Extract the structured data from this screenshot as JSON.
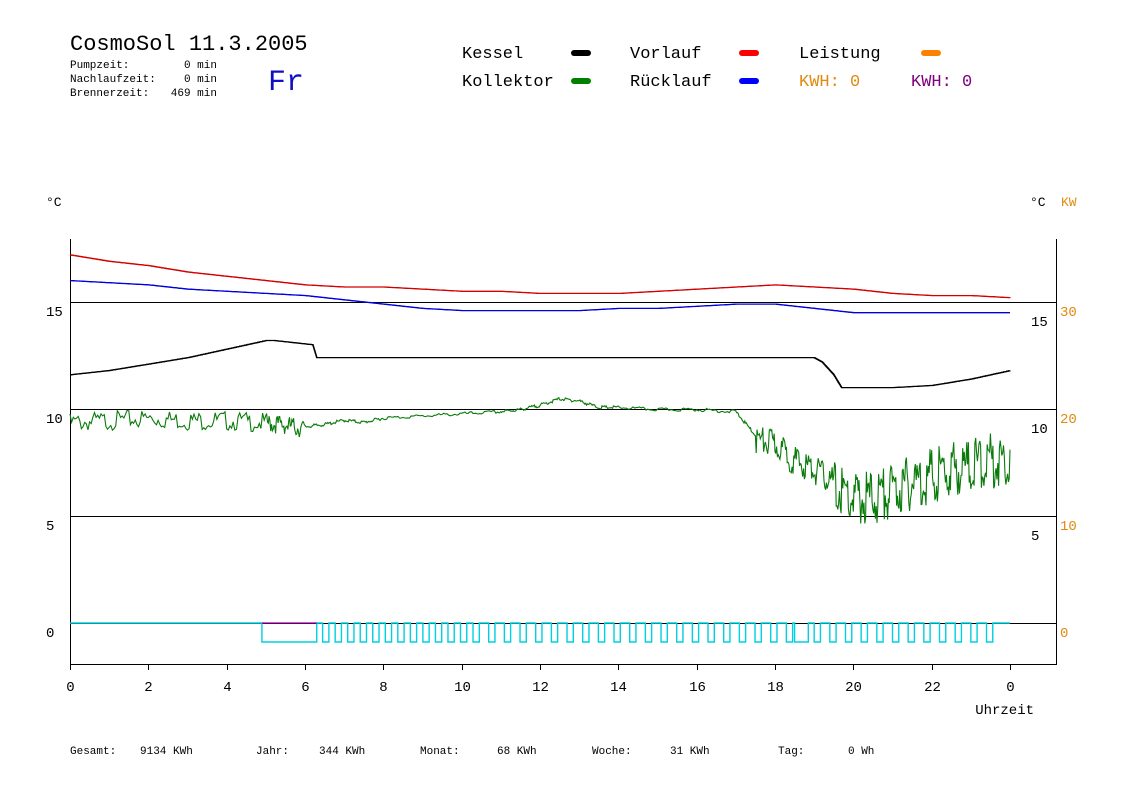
{
  "header": {
    "title": "CosmoSol 11.3.2005",
    "day": "Fr",
    "stats": [
      {
        "label": "Pumpzeit:",
        "value": "0 min"
      },
      {
        "label": "Nachlaufzeit:",
        "value": "0 min"
      },
      {
        "label": "Brennerzeit:",
        "value": "469 min"
      }
    ]
  },
  "legend": {
    "items": [
      {
        "label": "Kessel",
        "color": "#000000"
      },
      {
        "label": "Vorlauf",
        "color": "#ff0000"
      },
      {
        "label": "Leistung",
        "color": "#ff8000"
      },
      {
        "label": "Kollektor",
        "color": "#008000"
      },
      {
        "label": "Rücklauf",
        "color": "#0000ff"
      }
    ],
    "kwh_orange": "KWH: 0",
    "kwh_purple": "KWH: 0"
  },
  "footer": [
    {
      "label": "Gesamt:",
      "value": "9134 KWh"
    },
    {
      "label": "Jahr:",
      "value": "344 KWh"
    },
    {
      "label": "Monat:",
      "value": "68 KWh"
    },
    {
      "label": "Woche:",
      "value": "31 KWh"
    },
    {
      "label": "Tag:",
      "value": "0 Wh"
    }
  ],
  "chart_data": {
    "type": "line",
    "xlabel": "Uhrzeit",
    "ylabel_left": "°C",
    "ylabel_right": "°C",
    "ylabel_right2": "KW",
    "xlim": [
      0,
      24
    ],
    "ylim": [
      -2,
      18
    ],
    "x_ticks": [
      "0",
      "2",
      "4",
      "6",
      "8",
      "10",
      "12",
      "14",
      "16",
      "18",
      "20",
      "22",
      "0"
    ],
    "y_ticks_left": [
      "0",
      "5",
      "10",
      "15"
    ],
    "y_ticks_right_c": [
      "5",
      "10",
      "15"
    ],
    "y_ticks_right_kw": [
      "0",
      "10",
      "20",
      "30"
    ],
    "grid": "horizontal at 5,10,15",
    "series": [
      {
        "name": "Vorlauf",
        "color": "#d40000",
        "x": [
          0,
          1,
          2,
          3,
          4,
          5,
          6,
          7,
          8,
          9,
          10,
          11,
          12,
          13,
          14,
          15,
          16,
          17,
          18,
          19,
          20,
          21,
          22,
          23,
          24
        ],
        "y": [
          17.2,
          16.9,
          16.7,
          16.4,
          16.2,
          16.0,
          15.8,
          15.7,
          15.7,
          15.6,
          15.5,
          15.5,
          15.4,
          15.4,
          15.4,
          15.5,
          15.6,
          15.7,
          15.8,
          15.7,
          15.6,
          15.4,
          15.3,
          15.3,
          15.2
        ]
      },
      {
        "name": "Rücklauf",
        "color": "#0000dd",
        "x": [
          0,
          1,
          2,
          3,
          4,
          5,
          6,
          7,
          8,
          9,
          10,
          11,
          12,
          13,
          14,
          15,
          16,
          17,
          18,
          19,
          20,
          21,
          22,
          23,
          24
        ],
        "y": [
          16.0,
          15.9,
          15.8,
          15.6,
          15.5,
          15.4,
          15.3,
          15.1,
          14.9,
          14.7,
          14.6,
          14.6,
          14.6,
          14.6,
          14.7,
          14.7,
          14.8,
          14.9,
          14.9,
          14.7,
          14.5,
          14.5,
          14.5,
          14.5,
          14.5
        ]
      },
      {
        "name": "Kessel",
        "color": "#000000",
        "x": [
          0,
          1,
          2,
          3,
          4,
          5,
          5.2,
          6.2,
          6.3,
          10,
          15,
          18,
          19,
          19.2,
          19.5,
          19.7,
          20,
          21,
          22,
          23,
          24
        ],
        "y": [
          11.6,
          11.8,
          12.1,
          12.4,
          12.8,
          13.2,
          13.2,
          13.0,
          12.4,
          12.4,
          12.4,
          12.4,
          12.4,
          12.2,
          11.6,
          11.0,
          11.0,
          11.0,
          11.1,
          11.4,
          11.8
        ]
      },
      {
        "name": "Kollektor",
        "color": "#0a7a0a",
        "x": [
          0,
          1,
          2,
          3,
          4,
          5,
          5.5,
          6,
          6.5,
          7,
          7.5,
          8,
          9,
          10,
          11,
          11.5,
          12,
          12.5,
          13,
          13.5,
          14,
          15,
          16,
          17,
          17.5,
          18,
          18.5,
          19,
          19.5,
          20,
          20.5,
          21,
          21.5,
          22,
          22.5,
          23,
          23.5,
          24
        ],
        "y": [
          9.5,
          9.6,
          9.7,
          9.6,
          9.6,
          9.5,
          9.4,
          9.2,
          9.3,
          9.5,
          9.4,
          9.6,
          9.7,
          9.8,
          9.9,
          10.0,
          10.2,
          10.5,
          10.4,
          10.1,
          10.1,
          10.0,
          10.0,
          9.9,
          8.8,
          8.6,
          7.8,
          7.4,
          6.8,
          6.2,
          6.3,
          6.6,
          7.0,
          7.3,
          7.6,
          7.8,
          8.0,
          8.1
        ]
      }
    ]
  }
}
